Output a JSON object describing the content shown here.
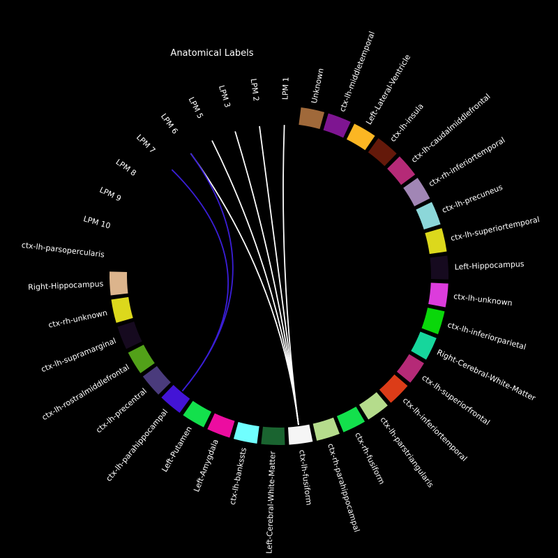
{
  "title": "Anatomical Labels",
  "colors": {
    "background": "#000000",
    "text": "#ffffff",
    "gap": "#000000"
  },
  "nodes": [
    {
      "name": "Unknown",
      "color": "#a0693a"
    },
    {
      "name": "ctx-lh-middletemporal",
      "color": "#7e1591"
    },
    {
      "name": "Left-Lateral-Ventricle",
      "color": "#fbb623"
    },
    {
      "name": "ctx-lh-insula",
      "color": "#64190a"
    },
    {
      "name": "ctx-lh-caudalmiddlefrontal",
      "color": "#b52a77"
    },
    {
      "name": "ctx-rh-inferiortemporal",
      "color": "#a186b5"
    },
    {
      "name": "ctx-lh-precuneus",
      "color": "#8cd7d9"
    },
    {
      "name": "ctx-lh-superiortemporal",
      "color": "#dcd81c"
    },
    {
      "name": "Left-Hippocampus",
      "color": "#160a1f"
    },
    {
      "name": "ctx-lh-unknown",
      "color": "#dc3cdc"
    },
    {
      "name": "ctx-lh-inferiorparietal",
      "color": "#0ad70a"
    },
    {
      "name": "Right-Cerebral-White-Matter",
      "color": "#16d69c"
    },
    {
      "name": "ctx-lh-superiorfrontal",
      "color": "#b52a77"
    },
    {
      "name": "ctx-lh-inferiortemporal",
      "color": "#dc3c18"
    },
    {
      "name": "ctx-lh-parstriangularis",
      "color": "#b5dc8c"
    },
    {
      "name": "ctx-rh-fusiform",
      "color": "#13e04c"
    },
    {
      "name": "ctx-rh-parahippocampal",
      "color": "#b5dc8c"
    },
    {
      "name": "ctx-lh-fusiform",
      "color": "#f5f5f5"
    },
    {
      "name": "Left-Cerebral-White-Matter",
      "color": "#1a6430"
    },
    {
      "name": "ctx-lh-bankssts",
      "color": "#70ffff"
    },
    {
      "name": "Left-Amygdala",
      "color": "#ec0da0"
    },
    {
      "name": "Left-Putamen",
      "color": "#13e04c"
    },
    {
      "name": "ctx-lh-parahippocampal",
      "color": "#4314d6"
    },
    {
      "name": "ctx-lh-precentral",
      "color": "#4a3b7c"
    },
    {
      "name": "ctx-lh-rostralmiddlefrontal",
      "color": "#52a119"
    },
    {
      "name": "ctx-lh-supramarginal",
      "color": "#160a1f"
    },
    {
      "name": "ctx-rh-unknown",
      "color": "#dcd81c"
    },
    {
      "name": "Right-Hippocampus",
      "color": "#dcb48c"
    },
    {
      "name": "ctx-lh-parsopercularis",
      "color": ""
    },
    {
      "name": "LPM 10",
      "color": ""
    },
    {
      "name": "LPM 9",
      "color": ""
    },
    {
      "name": "LPM 8",
      "color": ""
    },
    {
      "name": "LPM 7",
      "color": ""
    },
    {
      "name": "LPM 6",
      "color": ""
    },
    {
      "name": "LPM 5",
      "color": ""
    },
    {
      "name": "LPM 3",
      "color": ""
    },
    {
      "name": "LPM 2",
      "color": ""
    },
    {
      "name": "LPM 1",
      "color": ""
    }
  ],
  "connections": [
    {
      "source": "LPM 1",
      "target": "ctx-lh-fusiform",
      "color": "#ffffff"
    },
    {
      "source": "LPM 2",
      "target": "ctx-lh-fusiform",
      "color": "#ffffff"
    },
    {
      "source": "LPM 3",
      "target": "ctx-lh-fusiform",
      "color": "#ffffff"
    },
    {
      "source": "LPM 5",
      "target": "ctx-lh-fusiform",
      "color": "#ffffff"
    },
    {
      "source": "LPM 6",
      "target": "ctx-lh-fusiform",
      "color": "#ffffff"
    },
    {
      "source": "LPM 6",
      "target": "ctx-lh-parahippocampal",
      "color": "#3a1ed6"
    },
    {
      "source": "LPM 7",
      "target": "ctx-lh-parahippocampal",
      "color": "#3a1ed6"
    }
  ]
}
